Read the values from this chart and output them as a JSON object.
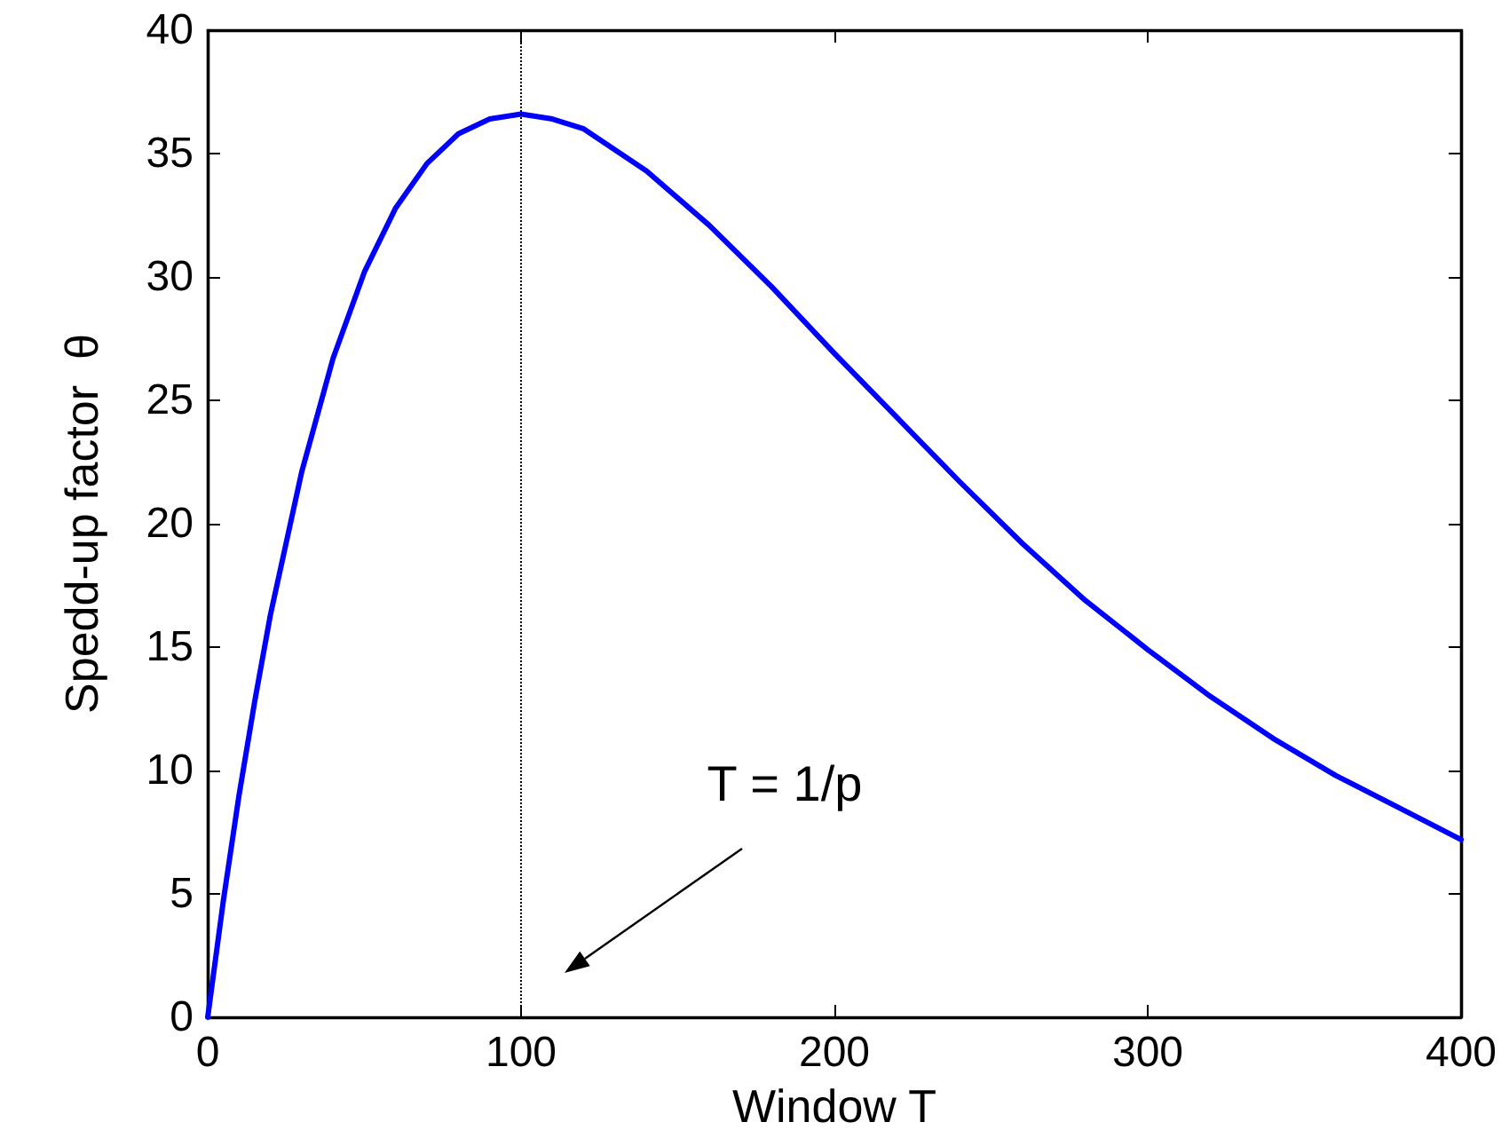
{
  "chart_data": {
    "type": "line",
    "xlabel": "Window T",
    "ylabel": "Spedd-up factor  θ",
    "x": [
      0,
      5,
      10,
      15,
      20,
      30,
      40,
      50,
      60,
      70,
      80,
      90,
      100,
      110,
      120,
      140,
      160,
      180,
      200,
      220,
      240,
      260,
      280,
      300,
      320,
      340,
      360,
      380,
      400
    ],
    "series": [
      {
        "color": "#0000ff",
        "values": [
          0,
          4.73,
          9.0,
          12.8,
          16.3,
          22.1,
          26.7,
          30.2,
          32.8,
          34.6,
          35.8,
          36.4,
          36.6,
          36.4,
          36.0,
          34.3,
          32.1,
          29.6,
          26.9,
          24.3,
          21.7,
          19.2,
          16.9,
          14.9,
          13.0,
          11.3,
          9.8,
          8.5,
          7.2
        ]
      }
    ],
    "xlim": [
      0,
      400
    ],
    "xticks": [
      0,
      100,
      200,
      300,
      400
    ],
    "ylim": [
      0,
      40
    ],
    "yticks": [
      0,
      5,
      10,
      15,
      20,
      25,
      30,
      35,
      40
    ],
    "grid": false,
    "marker": "none",
    "line_style": "solid",
    "ref_lines": [
      {
        "axis": "x",
        "value": 100,
        "color": "#000000",
        "line_style": "dotted"
      }
    ],
    "annotations": [
      "T = 1/p"
    ]
  }
}
